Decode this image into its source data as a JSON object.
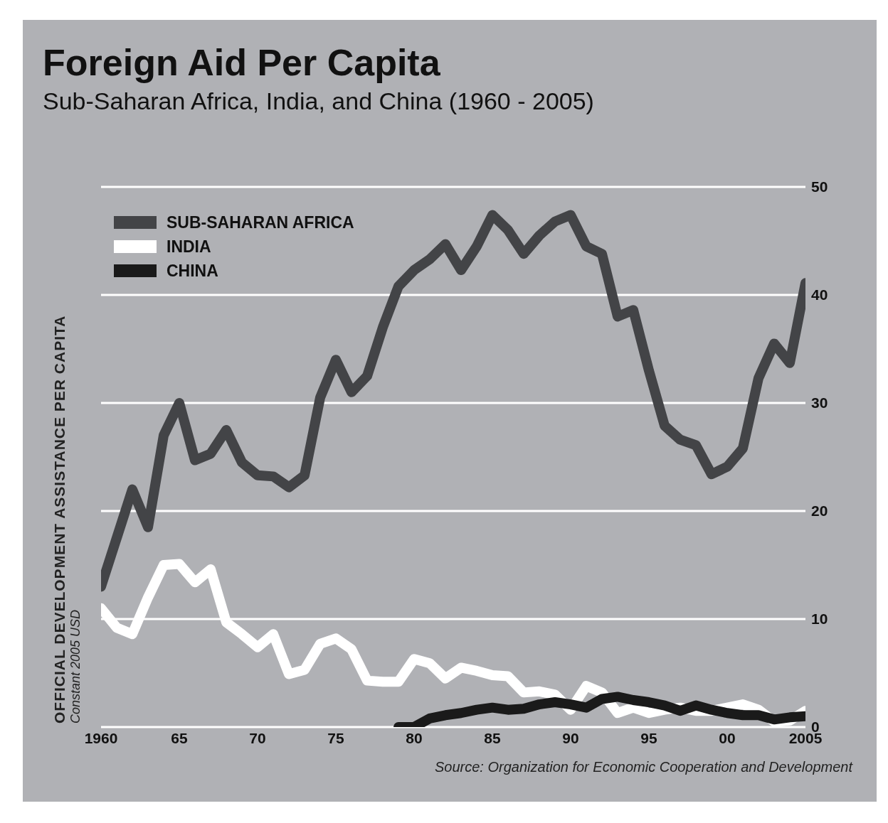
{
  "chart_data": {
    "type": "line",
    "title": "Foreign Aid Per Capita",
    "subtitle": "Sub-Saharan Africa, India, and China (1960 - 2005)",
    "ylabel": "OFFICIAL DEVELOPMENT ASSISTANCE PER CAPITA",
    "annotations": [
      "Constant 2005 USD",
      "Source: Organization for Economic Cooperation and Development"
    ],
    "x": [
      1960,
      1961,
      1962,
      1963,
      1964,
      1965,
      1966,
      1967,
      1968,
      1969,
      1970,
      1971,
      1972,
      1973,
      1974,
      1975,
      1976,
      1977,
      1978,
      1979,
      1980,
      1981,
      1982,
      1983,
      1984,
      1985,
      1986,
      1987,
      1988,
      1989,
      1990,
      1991,
      1992,
      1993,
      1994,
      1995,
      1996,
      1997,
      1998,
      1999,
      2000,
      2001,
      2002,
      2003,
      2004,
      2005
    ],
    "series": [
      {
        "name": "SUB-SAHARAN AFRICA",
        "color": "#434447",
        "values": [
          13,
          17.5,
          22,
          18.5,
          27,
          30,
          24.7,
          25.3,
          27.5,
          24.5,
          23.3,
          23.2,
          22.2,
          23.3,
          30.5,
          34,
          31,
          32.5,
          37,
          40.8,
          42.3,
          43.3,
          44.7,
          42.3,
          44.5,
          47.4,
          46,
          43.8,
          45.5,
          46.8,
          47.4,
          44.5,
          43.8,
          38,
          38.6,
          33,
          27.9,
          26.6,
          26.1,
          23.4,
          24.1,
          25.8,
          32.3,
          35.5,
          33.7,
          41.1
        ]
      },
      {
        "name": "INDIA",
        "color": "#ffffff",
        "values": [
          11,
          9.2,
          8.6,
          12,
          15,
          15.1,
          13.4,
          14.6,
          9.7,
          8.6,
          7.4,
          8.6,
          4.9,
          5.3,
          7.7,
          8.2,
          7.2,
          4.3,
          4.2,
          4.2,
          6.3,
          5.9,
          4.5,
          5.5,
          5.2,
          4.8,
          4.7,
          3.2,
          3.3,
          3,
          1.6,
          3.8,
          3.2,
          1.3,
          1.8,
          1.3,
          1.6,
          1.8,
          1.5,
          1.5,
          1.8,
          2.1,
          1.6,
          0.5,
          0.6,
          1.5
        ]
      },
      {
        "name": "CHINA",
        "color": "#1a1a1a",
        "values": [
          null,
          null,
          null,
          null,
          null,
          null,
          null,
          null,
          null,
          null,
          null,
          null,
          null,
          null,
          null,
          null,
          null,
          null,
          null,
          0,
          0,
          0.8,
          1.1,
          1.3,
          1.6,
          1.8,
          1.6,
          1.7,
          2.1,
          2.3,
          2.1,
          1.8,
          2.6,
          2.8,
          2.5,
          2.3,
          2,
          1.5,
          2,
          1.6,
          1.3,
          1.1,
          1.1,
          0.7,
          0.9,
          1
        ]
      }
    ],
    "xlim": [
      1960,
      2005
    ],
    "xticks": [
      {
        "value": 1960,
        "label": "1960"
      },
      {
        "value": 1965,
        "label": "65"
      },
      {
        "value": 1970,
        "label": "70"
      },
      {
        "value": 1975,
        "label": "75"
      },
      {
        "value": 1980,
        "label": "80"
      },
      {
        "value": 1985,
        "label": "85"
      },
      {
        "value": 1990,
        "label": "90"
      },
      {
        "value": 1995,
        "label": "95"
      },
      {
        "value": 2000,
        "label": "00"
      },
      2005
    ],
    "ylim": [
      0,
      50
    ],
    "yticks": [
      0,
      10,
      20,
      30,
      40,
      50
    ],
    "grid": "y",
    "legend": "top left",
    "marker": "none",
    "line_style": "solid"
  }
}
